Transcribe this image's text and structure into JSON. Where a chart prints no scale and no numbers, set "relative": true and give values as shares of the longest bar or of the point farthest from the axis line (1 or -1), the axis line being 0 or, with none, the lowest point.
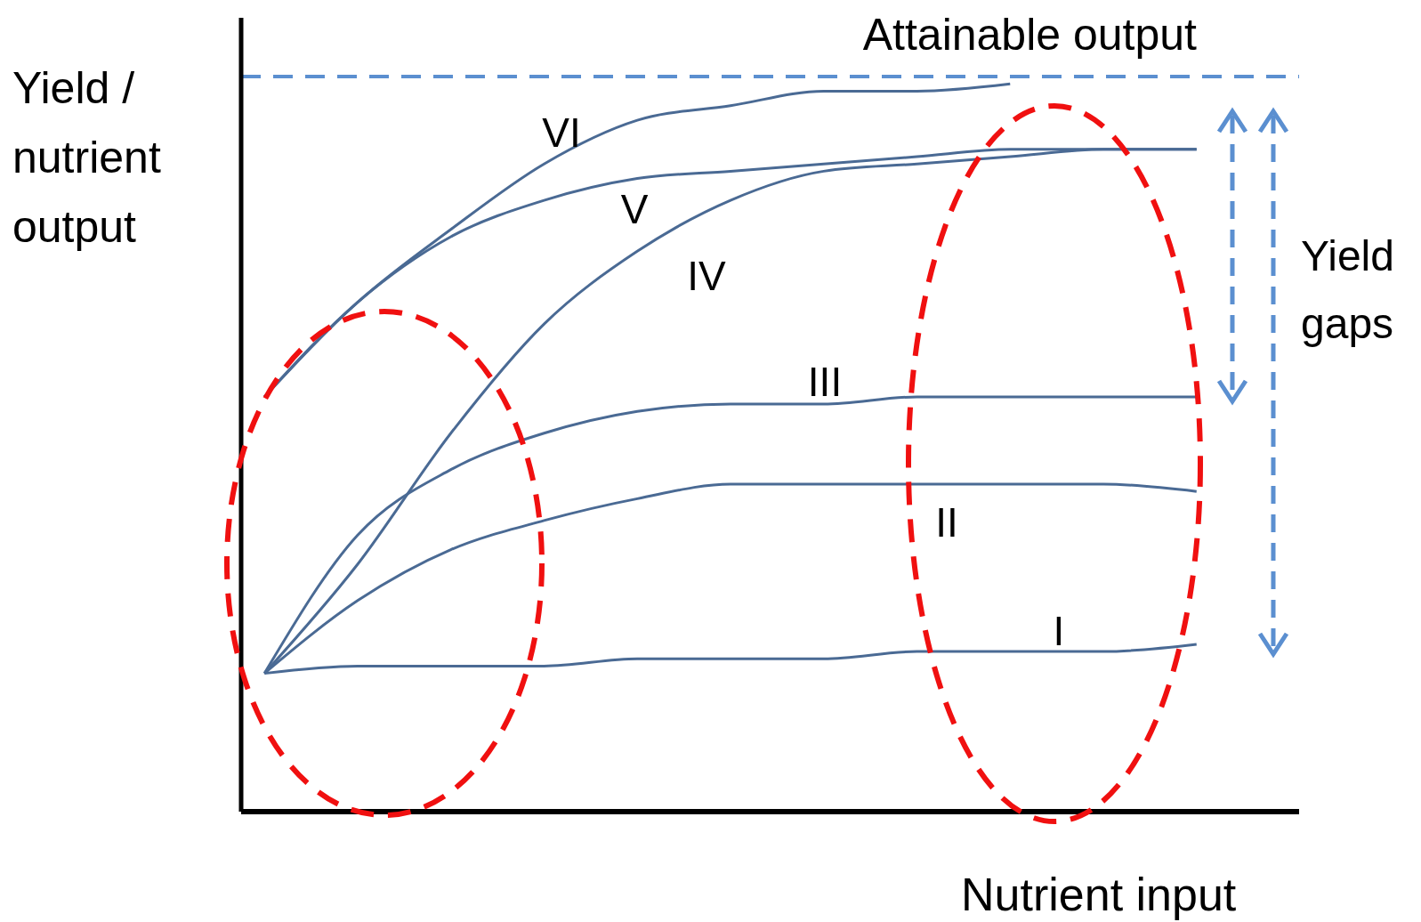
{
  "chart_data": {
    "type": "line",
    "relative": true,
    "grid": false,
    "legend": false,
    "marker": "none",
    "line_style": "solid",
    "ylabel": "Yield / nutrient output",
    "xlabel": "Nutrient input",
    "annotations": [
      "Yield gaps"
    ],
    "categories": [
      null,
      null,
      null,
      null,
      null,
      null,
      null,
      null,
      null,
      null,
      null
    ],
    "ref_lines": [
      {
        "axis": "y",
        "value": 1.01,
        "label": "Attainable output",
        "color": "#5b8fd0",
        "line_style": "dashed"
      }
    ],
    "series": [
      {
        "name": "VI",
        "color": "#4a6a94",
        "values": [
          0.57,
          0.7,
          0.8,
          0.89,
          0.95,
          0.97,
          0.99,
          0.99,
          1.0,
          null,
          null
        ]
      },
      {
        "name": "V",
        "color": "#4a6a94",
        "values": [
          0.57,
          0.7,
          0.79,
          0.84,
          0.87,
          0.88,
          0.89,
          0.9,
          0.91,
          0.91,
          0.91
        ]
      },
      {
        "name": "IV",
        "color": "#4a6a94",
        "values": [
          0.19,
          0.34,
          0.52,
          0.67,
          0.77,
          0.84,
          0.88,
          0.89,
          0.9,
          0.91,
          0.91
        ]
      },
      {
        "name": "III",
        "color": "#4a6a94",
        "values": [
          0.19,
          0.38,
          0.47,
          0.52,
          0.55,
          0.56,
          0.56,
          0.57,
          0.57,
          0.57,
          0.57
        ]
      },
      {
        "name": "II",
        "color": "#4a6a94",
        "values": [
          0.19,
          0.29,
          0.36,
          0.4,
          0.43,
          0.45,
          0.45,
          0.45,
          0.45,
          0.45,
          0.44
        ]
      },
      {
        "name": "I",
        "color": "#4a6a94",
        "values": [
          0.19,
          0.2,
          0.2,
          0.2,
          0.21,
          0.21,
          0.21,
          0.22,
          0.22,
          0.22,
          0.23
        ]
      }
    ]
  }
}
